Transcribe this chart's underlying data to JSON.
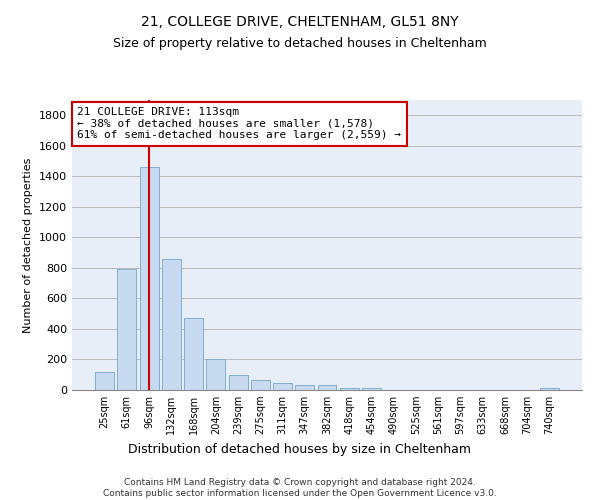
{
  "title1": "21, COLLEGE DRIVE, CHELTENHAM, GL51 8NY",
  "title2": "Size of property relative to detached houses in Cheltenham",
  "xlabel": "Distribution of detached houses by size in Cheltenham",
  "ylabel": "Number of detached properties",
  "footnote": "Contains HM Land Registry data © Crown copyright and database right 2024.\nContains public sector information licensed under the Open Government Licence v3.0.",
  "bar_labels": [
    "25sqm",
    "61sqm",
    "96sqm",
    "132sqm",
    "168sqm",
    "204sqm",
    "239sqm",
    "275sqm",
    "311sqm",
    "347sqm",
    "382sqm",
    "418sqm",
    "454sqm",
    "490sqm",
    "525sqm",
    "561sqm",
    "597sqm",
    "633sqm",
    "668sqm",
    "704sqm",
    "740sqm"
  ],
  "bar_values": [
    120,
    795,
    1460,
    860,
    470,
    200,
    100,
    65,
    45,
    35,
    30,
    15,
    15,
    2,
    2,
    2,
    2,
    2,
    2,
    2,
    15
  ],
  "bar_color": "#c8daf0",
  "bar_edge_color": "#7fafd4",
  "bar_edge_width": 0.7,
  "vline_x": 2.0,
  "vline_color": "#cc0000",
  "vline_linewidth": 1.5,
  "annotation_text": "21 COLLEGE DRIVE: 113sqm\n← 38% of detached houses are smaller (1,578)\n61% of semi-detached houses are larger (2,559) →",
  "annotation_box_color": "#cc0000",
  "annotation_box_fill": "white",
  "ylim": [
    0,
    1900
  ],
  "yticks": [
    0,
    200,
    400,
    600,
    800,
    1000,
    1200,
    1400,
    1600,
    1800
  ],
  "grid_color": "#bbbbbb",
  "background_color": "#e8eef8",
  "figsize": [
    6.0,
    5.0
  ],
  "dpi": 100,
  "title1_fontsize": 10,
  "title2_fontsize": 9,
  "xlabel_fontsize": 9,
  "ylabel_fontsize": 8,
  "annotation_fontsize": 8,
  "footnote_fontsize": 6.5
}
